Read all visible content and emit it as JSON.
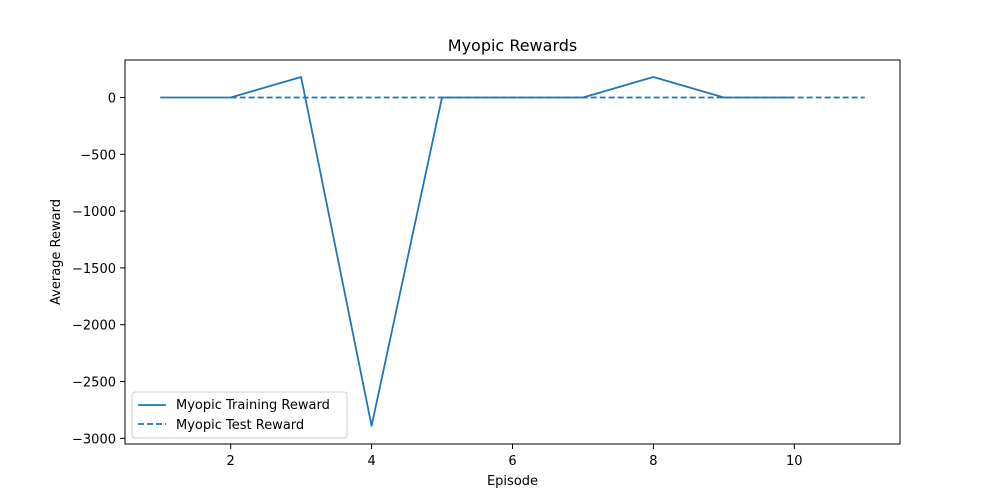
{
  "chart_data": {
    "type": "line",
    "title": "Myopic Rewards",
    "xlabel": "Episode",
    "ylabel": "Average Reward",
    "xlim": [
      0.5,
      11.5
    ],
    "ylim": [
      -3050,
      330
    ],
    "xticks": [
      2,
      4,
      6,
      8,
      10
    ],
    "yticks": [
      0,
      -500,
      -1000,
      -1500,
      -2000,
      -2500,
      -3000
    ],
    "grid": false,
    "legend_position": "lower-left",
    "series": [
      {
        "name": "Myopic Training Reward",
        "style": "solid",
        "color": "#1f77b4",
        "x": [
          1,
          2,
          3,
          4,
          5,
          6,
          7,
          8,
          9,
          10
        ],
        "y": [
          0,
          0,
          180,
          -2890,
          0,
          0,
          0,
          180,
          0,
          0
        ]
      },
      {
        "name": "Myopic Test Reward",
        "style": "dashed",
        "color": "#1f77b4",
        "x": [
          2,
          11
        ],
        "y": [
          0,
          0
        ]
      }
    ]
  }
}
